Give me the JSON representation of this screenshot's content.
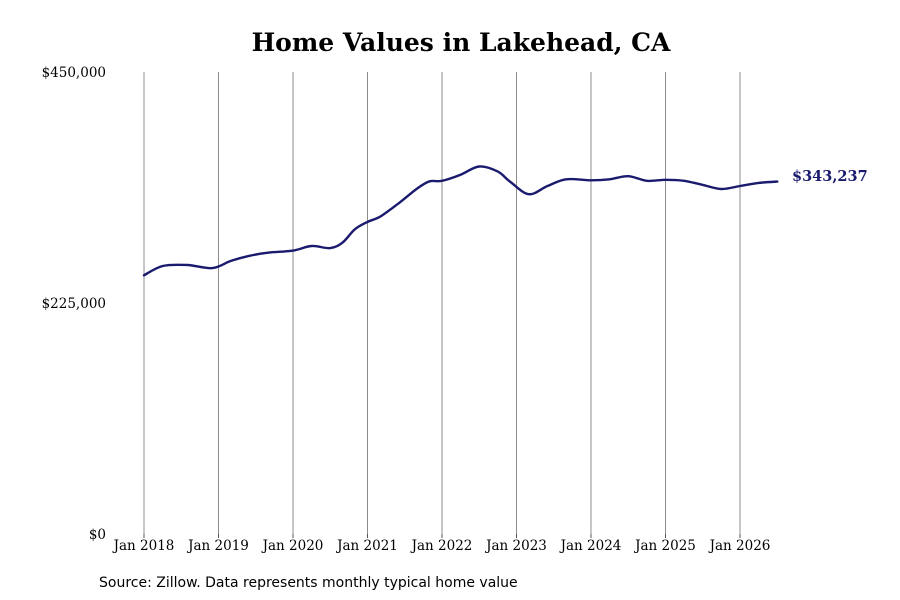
{
  "chart_data": {
    "type": "line",
    "title": "Home Values in Lakehead, CA",
    "xlabel": "",
    "ylabel": "",
    "ylim": [
      0,
      450000
    ],
    "yticks": [
      {
        "value": 0,
        "label": "$0"
      },
      {
        "value": 225000,
        "label": "$225,000"
      },
      {
        "value": 450000,
        "label": "$450,000"
      }
    ],
    "xlim": [
      "2018-01",
      "2026-07"
    ],
    "xticks": [
      {
        "date": "2018-01",
        "label": "Jan 2018"
      },
      {
        "date": "2019-01",
        "label": "Jan 2019"
      },
      {
        "date": "2020-01",
        "label": "Jan 2020"
      },
      {
        "date": "2021-01",
        "label": "Jan 2021"
      },
      {
        "date": "2022-01",
        "label": "Jan 2022"
      },
      {
        "date": "2023-01",
        "label": "Jan 2023"
      },
      {
        "date": "2024-01",
        "label": "Jan 2024"
      },
      {
        "date": "2025-01",
        "label": "Jan 2025"
      },
      {
        "date": "2026-01",
        "label": "Jan 2026"
      }
    ],
    "grid": "vertical",
    "series": [
      {
        "color": "#1a1a6e",
        "points": [
          {
            "date": "2018-01",
            "value": 252000
          },
          {
            "date": "2018-04",
            "value": 261000
          },
          {
            "date": "2018-08",
            "value": 262000
          },
          {
            "date": "2018-12",
            "value": 259000
          },
          {
            "date": "2019-03",
            "value": 266000
          },
          {
            "date": "2019-06",
            "value": 271000
          },
          {
            "date": "2019-09",
            "value": 274000
          },
          {
            "date": "2020-01",
            "value": 276000
          },
          {
            "date": "2020-04",
            "value": 280500
          },
          {
            "date": "2020-07",
            "value": 278500
          },
          {
            "date": "2020-09",
            "value": 284000
          },
          {
            "date": "2020-11",
            "value": 297000
          },
          {
            "date": "2021-01",
            "value": 304000
          },
          {
            "date": "2021-03",
            "value": 309000
          },
          {
            "date": "2021-06",
            "value": 322000
          },
          {
            "date": "2021-09",
            "value": 336500
          },
          {
            "date": "2021-11",
            "value": 343500
          },
          {
            "date": "2022-01",
            "value": 344000
          },
          {
            "date": "2022-04",
            "value": 350000
          },
          {
            "date": "2022-07",
            "value": 358000
          },
          {
            "date": "2022-10",
            "value": 353000
          },
          {
            "date": "2022-12",
            "value": 343000
          },
          {
            "date": "2023-03",
            "value": 331000
          },
          {
            "date": "2023-06",
            "value": 339000
          },
          {
            "date": "2023-09",
            "value": 345500
          },
          {
            "date": "2024-01",
            "value": 344500
          },
          {
            "date": "2024-04",
            "value": 345500
          },
          {
            "date": "2024-07",
            "value": 348500
          },
          {
            "date": "2024-10",
            "value": 344000
          },
          {
            "date": "2025-01",
            "value": 345000
          },
          {
            "date": "2025-04",
            "value": 344000
          },
          {
            "date": "2025-07",
            "value": 340000
          },
          {
            "date": "2025-10",
            "value": 336000
          },
          {
            "date": "2026-01",
            "value": 339000
          },
          {
            "date": "2026-04",
            "value": 342000
          },
          {
            "date": "2026-07",
            "value": 343237
          }
        ]
      }
    ],
    "end_label": "$343,237",
    "source": "Source: Zillow. Data represents monthly typical home value"
  }
}
